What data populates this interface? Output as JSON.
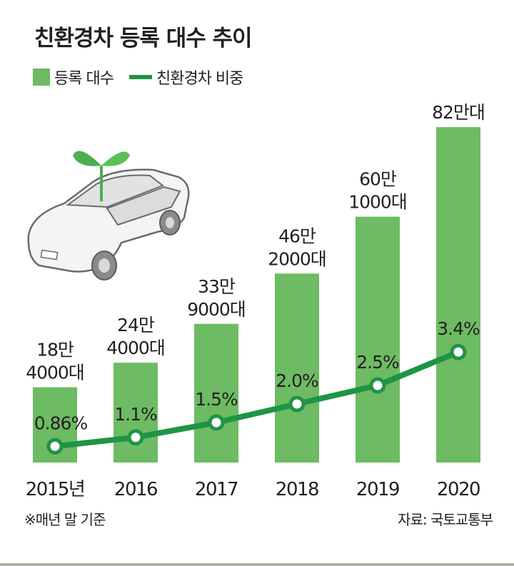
{
  "chart_data": {
    "type": "bar+line",
    "title": "친환경차 등록 대수 추이",
    "categories": [
      "2015년",
      "2016",
      "2017",
      "2018",
      "2019",
      "2020"
    ],
    "series": [
      {
        "name": "등록 대수",
        "type": "bar",
        "unit": "만대",
        "values": [
          18.4,
          24.4,
          33.9,
          46.2,
          60.1,
          82
        ],
        "labels": [
          [
            "18만",
            "4000대"
          ],
          [
            "24만",
            "4000대"
          ],
          [
            "33만",
            "9000대"
          ],
          [
            "46만",
            "2000대"
          ],
          [
            "60만",
            "1000대"
          ],
          [
            "82만대"
          ]
        ]
      },
      {
        "name": "친환경차 비중",
        "type": "line",
        "unit": "%",
        "values": [
          0.86,
          1.1,
          1.5,
          2.0,
          2.5,
          3.4
        ],
        "labels": [
          "0.86%",
          "1.1%",
          "1.5%",
          "2.0%",
          "2.5%",
          "3.4%"
        ]
      }
    ],
    "grid": false,
    "legend_position": "top-left",
    "colors": {
      "bar": "#6dbb63",
      "line": "#1f9446",
      "text": "#231f20"
    }
  },
  "footer": {
    "note": "※매년 말 기준",
    "source": "자료: 국토교통부"
  }
}
